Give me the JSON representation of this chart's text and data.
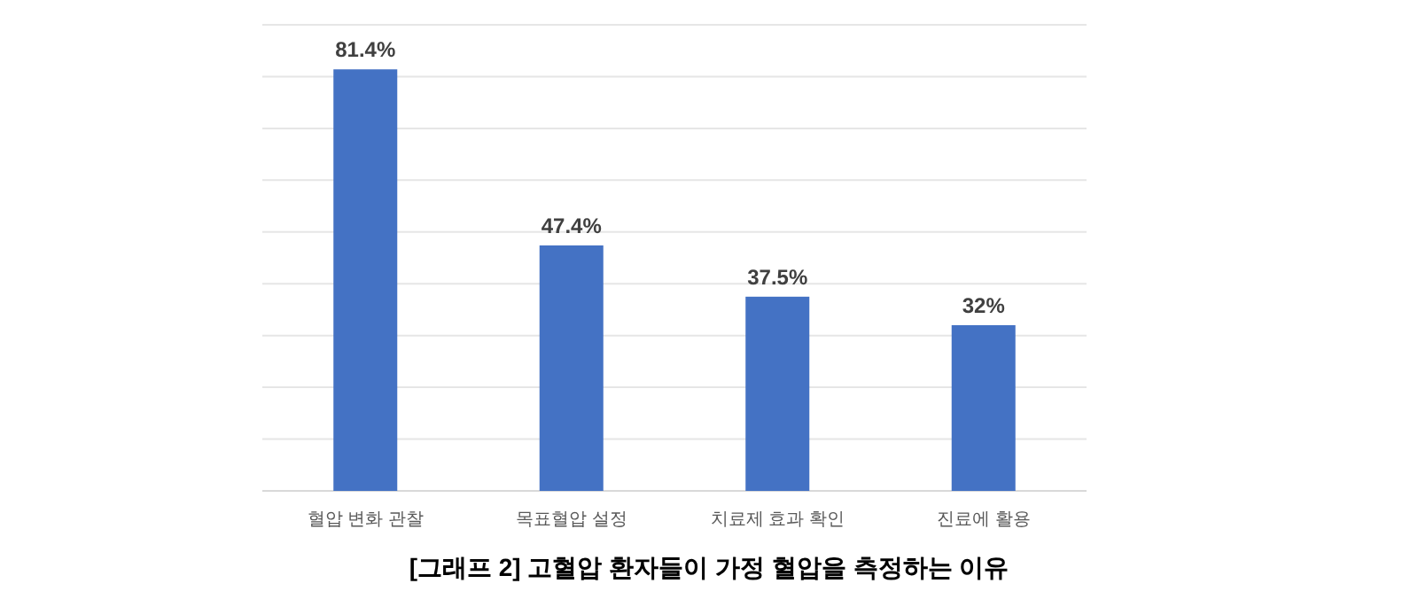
{
  "chart_data": {
    "type": "bar",
    "title": "[그래프 2] 고혈압 환자들이 가정 혈압을 측정하는 이유",
    "categories": [
      "혈압 변화 관찰",
      "목표혈압 설정",
      "치료제 효과 확인",
      "진료에 활용"
    ],
    "values": [
      81.4,
      47.4,
      37.5,
      32
    ],
    "value_labels": [
      "81.4%",
      "47.4%",
      "37.5%",
      "32%"
    ],
    "color": "#4472c4",
    "ylim": [
      0,
      90
    ],
    "yticks": [
      {
        "value": 0,
        "label": null
      },
      {
        "value": 10,
        "label": null
      },
      {
        "value": 20,
        "label": null
      },
      {
        "value": 30,
        "label": null
      },
      {
        "value": 40,
        "label": null
      },
      {
        "value": 50,
        "label": null
      },
      {
        "value": 60,
        "label": null
      },
      {
        "value": 70,
        "label": null
      },
      {
        "value": 80,
        "label": null
      },
      {
        "value": 90,
        "label": null
      }
    ],
    "grid": "y",
    "tick_labels": "x"
  }
}
